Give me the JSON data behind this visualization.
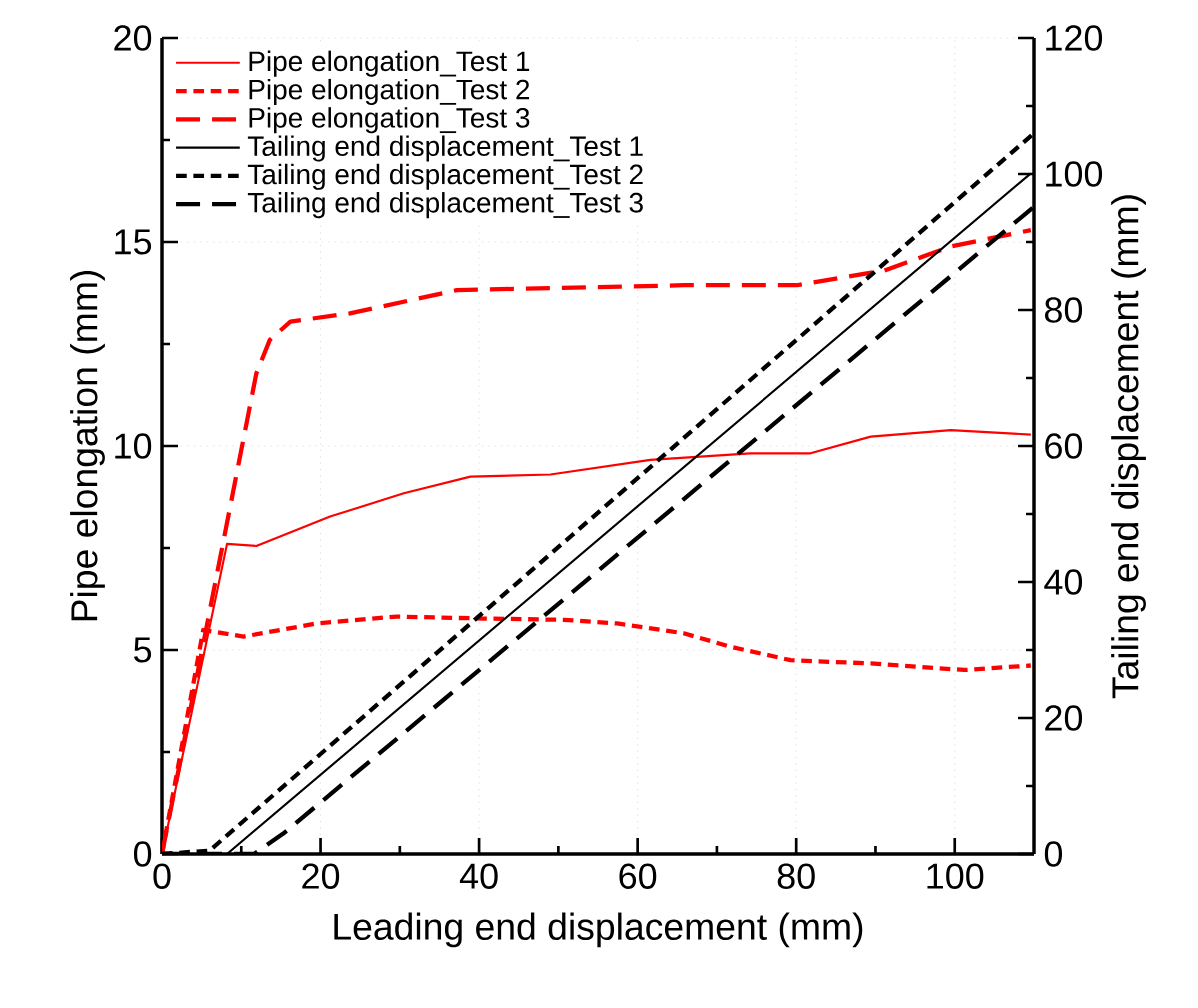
{
  "chart_data": {
    "type": "line",
    "xlabel": "Leading end displacement (mm)",
    "ylabel": "Pipe elongation (mm)",
    "y2label": "Tailing end displacement (mm)",
    "xlim": [
      0,
      110
    ],
    "xticks": [
      0,
      20,
      40,
      60,
      80,
      100
    ],
    "ylim": [
      0,
      20
    ],
    "yticks": [
      0,
      5,
      10,
      15,
      20
    ],
    "y2lim": [
      0,
      120
    ],
    "y2ticks": [
      0,
      20,
      40,
      60,
      80,
      100,
      120
    ],
    "grid": true,
    "legend": "top left",
    "marker": "none",
    "series": [
      {
        "name": "Pipe elongation_Test 1",
        "color": "#ff0000",
        "line_style": "solid",
        "x": [
          0,
          8.2,
          11.9,
          21.2,
          30.5,
          38.9,
          49,
          61.6,
          74.2,
          81.8,
          89.4,
          99.5,
          109.6
        ],
        "values": [
          0,
          7.6,
          7.55,
          8.27,
          8.84,
          9.25,
          9.3,
          9.66,
          9.82,
          9.82,
          10.23,
          10.39,
          10.28
        ]
      },
      {
        "name": "Pipe elongation_Test 2",
        "color": "#ff0000",
        "line_style": "dotted",
        "x": [
          0,
          5.2,
          10.3,
          19.5,
          29.6,
          40.6,
          50.7,
          57.4,
          65.8,
          71.7,
          79.3,
          89.4,
          101.2,
          109.6
        ],
        "values": [
          0,
          5.49,
          5.33,
          5.65,
          5.82,
          5.77,
          5.74,
          5.65,
          5.41,
          5.08,
          4.75,
          4.67,
          4.51,
          4.62
        ]
      },
      {
        "name": "Pipe elongation_Test 3",
        "color": "#ff0000",
        "line_style": "dashed",
        "x": [
          0,
          11.9,
          13.6,
          16.2,
          23.7,
          37.2,
          49,
          65.8,
          80.1,
          91.1,
          99.5,
          109.6
        ],
        "values": [
          0,
          11.78,
          12.6,
          13.05,
          13.25,
          13.82,
          13.87,
          13.94,
          13.94,
          14.3,
          14.89,
          15.29
        ]
      },
      {
        "name": "Tailing end displacement_Test 1",
        "color": "#000000",
        "line_style": "solid",
        "axis": "y2",
        "x": [
          0,
          8.2,
          109.6
        ],
        "values": [
          0,
          0,
          100.1
        ]
      },
      {
        "name": "Tailing end displacement_Test 2",
        "color": "#000000",
        "line_style": "dotted",
        "axis": "y2",
        "x": [
          0,
          6,
          110
        ],
        "values": [
          0,
          0.5,
          106
        ]
      },
      {
        "name": "Tailing end displacement_Test 3",
        "color": "#000000",
        "line_style": "dashed",
        "axis": "y2",
        "x": [
          0,
          11.6,
          15.3,
          110
        ],
        "values": [
          0,
          0,
          3,
          95.2
        ]
      }
    ]
  }
}
